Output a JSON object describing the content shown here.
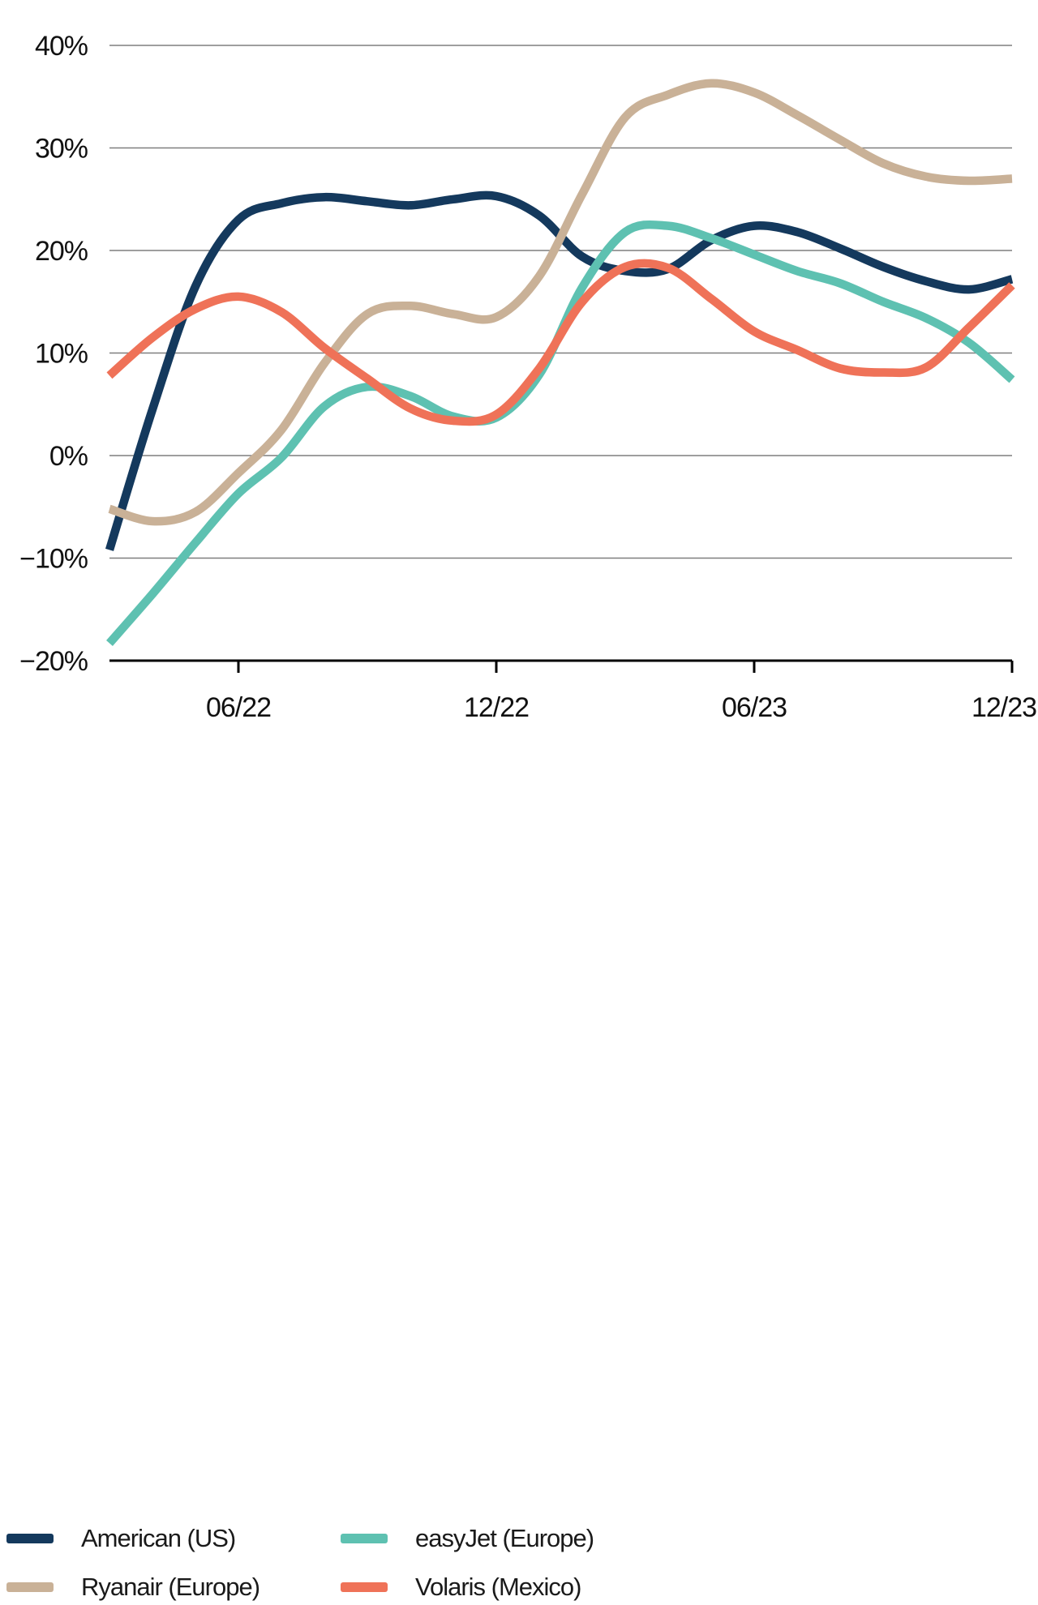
{
  "chart_data": {
    "type": "line",
    "title": "",
    "xlabel": "",
    "ylabel": "",
    "grid": "horizontal-only",
    "legend_position": "bottom",
    "ylim": [
      -20,
      40
    ],
    "y_ticks": [
      {
        "label": "40%",
        "value": 40
      },
      {
        "label": "30%",
        "value": 30
      },
      {
        "label": "20%",
        "value": 20
      },
      {
        "label": "10%",
        "value": 10
      },
      {
        "label": "0%",
        "value": 0
      },
      {
        "label": "−10%",
        "value": -10
      },
      {
        "label": "−20%",
        "value": -20
      }
    ],
    "x_tick_labels": [
      "06/22",
      "12/22",
      "06/23",
      "12/23"
    ],
    "x_tick_month_index": [
      3,
      9,
      15,
      21
    ],
    "x_monthly": [
      "03/22",
      "04/22",
      "05/22",
      "06/22",
      "07/22",
      "08/22",
      "09/22",
      "10/22",
      "11/22",
      "12/22",
      "01/23",
      "02/23",
      "03/23",
      "04/23",
      "05/23",
      "06/23",
      "07/23",
      "08/23",
      "09/23",
      "10/23",
      "11/23",
      "12/23"
    ],
    "unit": "percent",
    "series": [
      {
        "name": "American (US)",
        "color": "#14395d",
        "values": [
          -9.2,
          4.5,
          16.5,
          23.0,
          24.6,
          25.2,
          24.8,
          24.4,
          25.0,
          25.3,
          23.4,
          19.4,
          18.0,
          18.2,
          21.0,
          22.4,
          21.8,
          20.2,
          18.4,
          17.0,
          16.2,
          17.2
        ]
      },
      {
        "name": "Ryanair (Europe)",
        "color": "#c9b197",
        "values": [
          -5.2,
          -6.4,
          -5.5,
          -1.7,
          2.5,
          9.0,
          13.8,
          14.6,
          13.8,
          13.5,
          17.5,
          25.5,
          33.0,
          35.2,
          36.3,
          35.4,
          33.2,
          30.8,
          28.5,
          27.2,
          26.8,
          27.0
        ]
      },
      {
        "name": "easyJet (Europe)",
        "color": "#5ec1b1",
        "values": [
          -18.3,
          -13.5,
          -8.5,
          -3.7,
          -0.2,
          4.8,
          6.7,
          5.8,
          3.8,
          3.7,
          7.9,
          16.4,
          21.8,
          22.4,
          21.2,
          19.6,
          18.0,
          16.8,
          15.0,
          13.4,
          11.0,
          7.4
        ]
      },
      {
        "name": "Volaris (Mexico)",
        "color": "#ef7258",
        "values": [
          7.8,
          11.5,
          14.3,
          15.5,
          14.0,
          10.5,
          7.5,
          4.6,
          3.4,
          4.0,
          8.5,
          15.0,
          18.4,
          18.3,
          15.3,
          12.1,
          10.3,
          8.5,
          8.1,
          8.6,
          12.5,
          16.6
        ]
      }
    ],
    "colors": {
      "grid": "#7f7f7f",
      "axis": "#000000",
      "text": "#111111",
      "background": "#ffffff"
    }
  },
  "legend": {
    "order_note": "row-major: American (US), easyJet (Europe), Ryanair (Europe), Volaris (Mexico)"
  }
}
